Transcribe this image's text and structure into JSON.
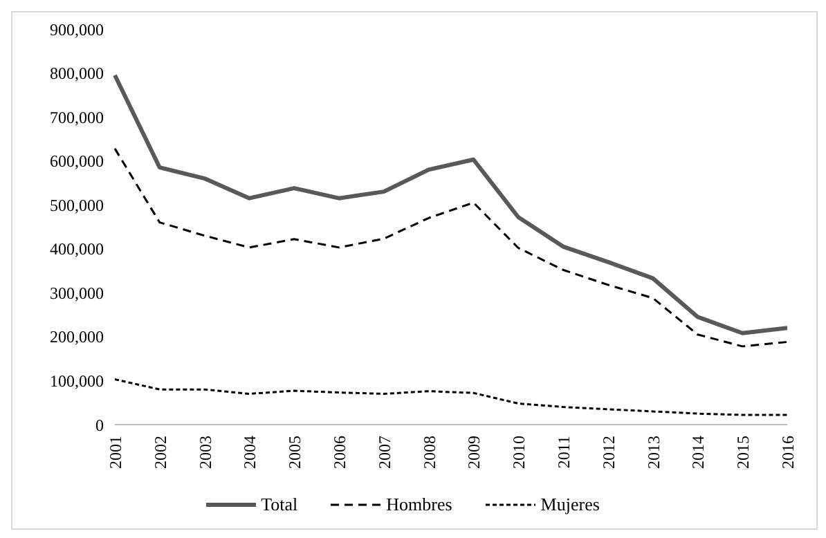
{
  "chart_data": {
    "type": "line",
    "categories": [
      "2001",
      "2002",
      "2003",
      "2004",
      "2005",
      "2006",
      "2007",
      "2008",
      "2009",
      "2010",
      "2011",
      "2012",
      "2013",
      "2014",
      "2015",
      "2016"
    ],
    "series": [
      {
        "name": "Total",
        "color": "#595959",
        "line_style": "solid",
        "values": [
          795000,
          585000,
          560000,
          515000,
          538000,
          515000,
          530000,
          580000,
          603000,
          472000,
          405000,
          370000,
          333000,
          245000,
          208000,
          220000
        ]
      },
      {
        "name": "Hombres",
        "color": "#000000",
        "line_style": "dashed",
        "values": [
          628000,
          460000,
          430000,
          403000,
          422000,
          403000,
          423000,
          470000,
          505000,
          402000,
          352000,
          318000,
          288000,
          205000,
          178000,
          188000
        ]
      },
      {
        "name": "Mujeres",
        "color": "#000000",
        "line_style": "dotted",
        "values": [
          103000,
          80000,
          80000,
          70000,
          77000,
          73000,
          70000,
          76000,
          72000,
          48000,
          40000,
          35000,
          30000,
          25000,
          22000,
          22000
        ]
      }
    ],
    "ylim": [
      0,
      900000
    ],
    "yticks": [
      0,
      {
        "value": 100000,
        "label": "100,000"
      },
      {
        "value": 200000,
        "label": "200,000"
      },
      {
        "value": 300000,
        "label": "300,000"
      },
      {
        "value": 400000,
        "label": "400,000"
      },
      {
        "value": 500000,
        "label": "500,000"
      },
      {
        "value": 600000,
        "label": "600,000"
      },
      {
        "value": 700000,
        "label": "700,000"
      },
      {
        "value": 800000,
        "label": "800,000"
      },
      {
        "value": 900000,
        "label": "900,000"
      }
    ],
    "grid": false,
    "legend": "bottom",
    "marker": "none"
  }
}
